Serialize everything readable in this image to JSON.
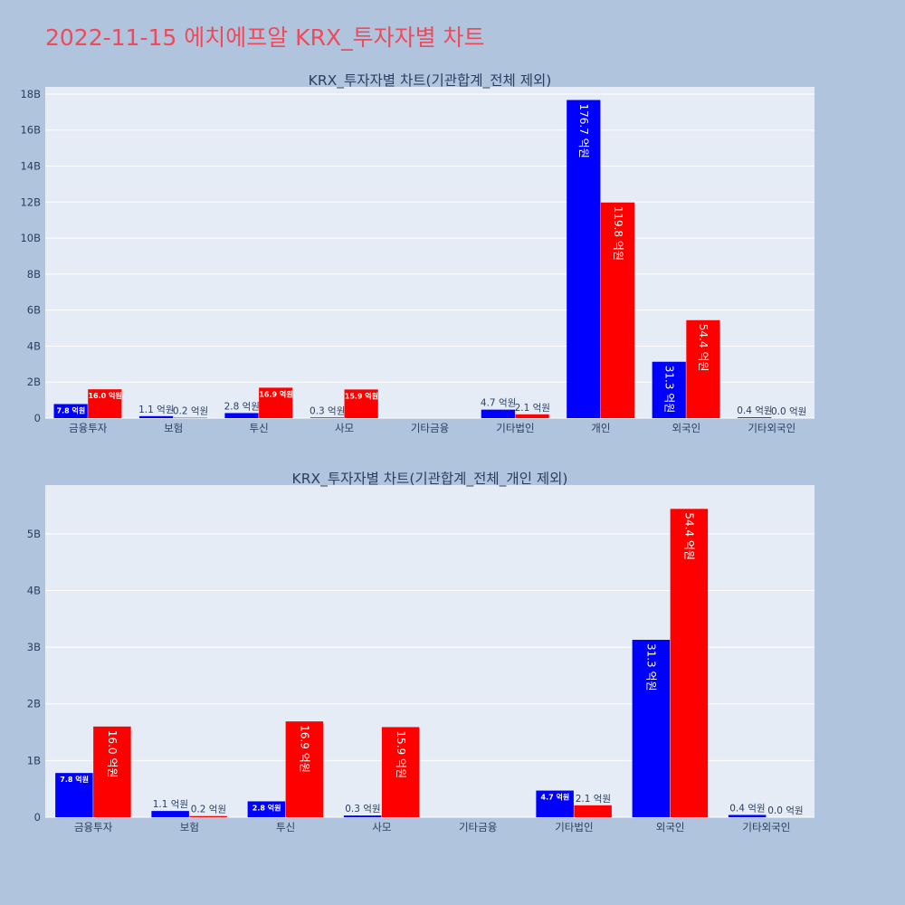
{
  "page": {
    "title": "2022-11-15 에치에프알 KRX_투자자별 차트"
  },
  "colors": {
    "buy": "#0000ff",
    "sell": "#ff0000",
    "plot_bg": "#e5ecf6",
    "page_bg": "#b0c4de",
    "title": "#ef4a5a"
  },
  "chart_data": [
    {
      "type": "bar",
      "title": "KRX_투자자별 차트(기관합계_전체 제외)",
      "categories": [
        "금융투자",
        "보험",
        "투신",
        "사모",
        "기타금융",
        "기타법인",
        "개인",
        "외국인",
        "기타외국인"
      ],
      "series": [
        {
          "values": [
            0.78,
            0.11,
            0.28,
            0.03,
            0,
            0.47,
            17.67,
            3.13,
            0.04
          ],
          "labels": [
            "7.8 억원",
            "1.1 억원",
            "2.8 억원",
            "0.3 억원",
            "",
            "4.7 억원",
            "176.7 억원",
            "31.3 억원",
            "0.4 억원"
          ]
        },
        {
          "values": [
            1.6,
            0.02,
            1.69,
            1.59,
            0,
            0.21,
            11.98,
            5.44,
            0.0
          ],
          "labels": [
            "16.0 억원",
            "0.2 억원",
            "16.9 억원",
            "15.9 억원",
            "",
            "2.1 억원",
            "119.8 억원",
            "54.4 억원",
            "0.0 억원"
          ]
        }
      ],
      "ylim": [
        0,
        18.4
      ],
      "yticks": [
        0,
        2,
        4,
        6,
        8,
        10,
        12,
        14,
        16,
        18
      ],
      "ytick_labels": [
        "0",
        "2B",
        "4B",
        "6B",
        "8B",
        "10B",
        "12B",
        "14B",
        "16B",
        "18B"
      ],
      "grid": true
    },
    {
      "type": "bar",
      "title": "KRX_투자자별 차트(기관합계_전체_개인 제외)",
      "categories": [
        "금융투자",
        "보험",
        "투신",
        "사모",
        "기타금융",
        "기타법인",
        "외국인",
        "기타외국인"
      ],
      "series": [
        {
          "values": [
            0.78,
            0.11,
            0.28,
            0.03,
            0,
            0.47,
            3.13,
            0.04
          ],
          "labels": [
            "7.8 억원",
            "1.1 억원",
            "2.8 억원",
            "0.3 억원",
            "",
            "4.7 억원",
            "31.3 억원",
            "0.4 억원"
          ]
        },
        {
          "values": [
            1.6,
            0.02,
            1.69,
            1.59,
            0,
            0.21,
            5.44,
            0.0
          ],
          "labels": [
            "16.0 억원",
            "0.2 억원",
            "16.9 억원",
            "15.9 억원",
            "",
            "2.1 억원",
            "54.4 억원",
            "0.0 억원"
          ]
        }
      ],
      "ylim": [
        0,
        5.86
      ],
      "yticks": [
        0,
        1,
        2,
        3,
        4,
        5
      ],
      "ytick_labels": [
        "0",
        "1B",
        "2B",
        "3B",
        "4B",
        "5B"
      ],
      "grid": true
    }
  ]
}
